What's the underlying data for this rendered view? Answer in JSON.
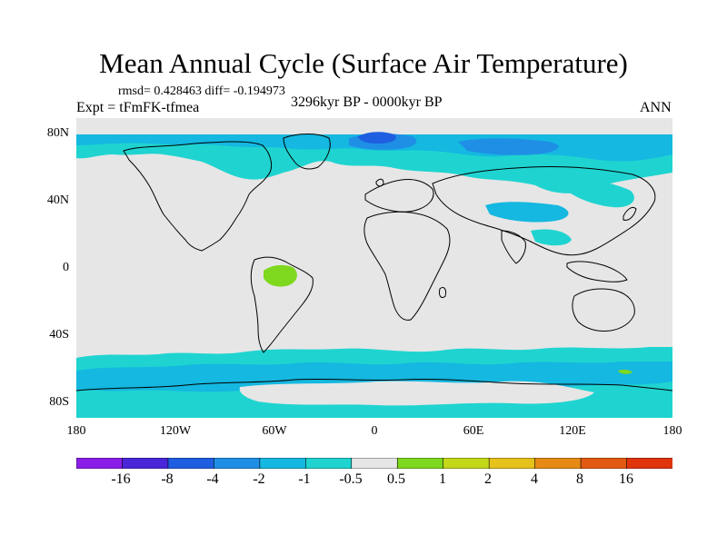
{
  "title": "Mean Annual Cycle (Surface Air Temperature)",
  "stats": "rmsd= 0.428463 diff= -0.194973",
  "experiment": "Expt = tFmFK-tfmea",
  "period": "3296kyr BP - 0000kyr BP",
  "season": "ANN",
  "lat_labels": [
    "80N",
    "40N",
    "0",
    "40S",
    "80S"
  ],
  "lon_labels": [
    "180",
    "120W",
    "60W",
    "0",
    "60E",
    "120E",
    "180"
  ],
  "colorbar": {
    "labels": [
      "-16",
      "-8",
      "-4",
      "-2",
      "-1",
      "-0.5",
      "0.5",
      "1",
      "2",
      "4",
      "8",
      "16"
    ],
    "colors": [
      "#8a1ee8",
      "#4a26d8",
      "#1e5ee0",
      "#1f8fe6",
      "#14b8e0",
      "#1fd4d0",
      "#e6e6e6",
      "#7ed81e",
      "#c4d81a",
      "#e6c21a",
      "#e68a14",
      "#e25a12",
      "#e0340c"
    ]
  },
  "map_colors": {
    "background": "#e6e6e6",
    "cool_light": "#1fd4d0",
    "cool_mid": "#14b8e0",
    "cool_strong": "#1f8fe6",
    "cool_deep": "#1e5ee0",
    "warm_light": "#7ed81e"
  }
}
